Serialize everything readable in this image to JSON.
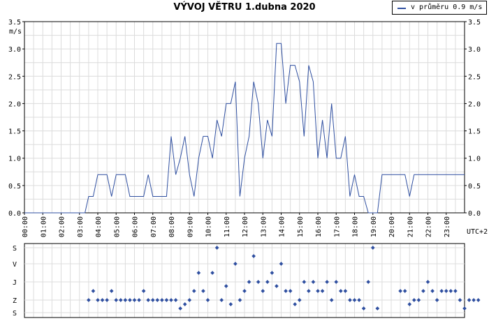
{
  "chart_data": [
    {
      "type": "line",
      "title": "VÝVOJ VĚTRU  1.dubna 2020",
      "ylabel": "m/s",
      "timezone_label": "UTC+2",
      "ylim": [
        0,
        3.5
      ],
      "y_ticks": [
        "0.0",
        "0.5",
        "1.0",
        "1.5",
        "2.0",
        "2.5",
        "3.0",
        "3.5"
      ],
      "xlim": [
        0,
        24
      ],
      "x_ticks": [
        "00:00",
        "01:00",
        "02:00",
        "03:00",
        "04:00",
        "05:00",
        "06:00",
        "07:00",
        "08:00",
        "09:00",
        "10:00",
        "11:00",
        "12:00",
        "13:00",
        "14:00",
        "15:00",
        "16:00",
        "17:00",
        "18:00",
        "19:00",
        "20:00",
        "21:00",
        "22:00",
        "23:00"
      ],
      "grid": true,
      "legend_position": "top-right",
      "series": [
        {
          "name": "v průměru 0.9 m/s",
          "color": "#2f4fa0",
          "x": [
            0,
            3.3,
            3.5,
            3.75,
            4.0,
            4.5,
            4.75,
            5.0,
            5.5,
            5.75,
            6.25,
            6.5,
            6.75,
            7.0,
            7.5,
            7.75,
            8.0,
            8.25,
            8.5,
            8.75,
            9.0,
            9.25,
            9.5,
            9.75,
            10.0,
            10.25,
            10.5,
            10.75,
            11.0,
            11.25,
            11.5,
            11.75,
            12.0,
            12.25,
            12.5,
            12.75,
            13.0,
            13.25,
            13.5,
            13.75,
            14.0,
            14.25,
            14.5,
            14.75,
            15.0,
            15.25,
            15.5,
            15.75,
            16.0,
            16.25,
            16.5,
            16.75,
            17.0,
            17.25,
            17.5,
            17.75,
            18.0,
            18.25,
            18.5,
            18.75,
            19.0,
            19.25,
            19.5,
            20.0,
            20.5,
            20.75,
            21.0,
            21.25,
            21.5,
            22.0,
            22.5,
            23.0,
            23.5,
            24.0
          ],
          "y": [
            0,
            0,
            0.3,
            0.3,
            0.7,
            0.7,
            0.3,
            0.7,
            0.7,
            0.3,
            0.3,
            0.3,
            0.7,
            0.3,
            0.3,
            0.3,
            1.4,
            0.7,
            1.0,
            1.4,
            0.7,
            0.3,
            1.0,
            1.4,
            1.4,
            1.0,
            1.7,
            1.4,
            2.0,
            2.0,
            2.4,
            0.3,
            1.0,
            1.4,
            2.4,
            2.0,
            1.0,
            1.7,
            1.4,
            3.1,
            3.1,
            2.0,
            2.7,
            2.7,
            2.4,
            1.4,
            2.7,
            2.4,
            1.0,
            1.7,
            1.0,
            2.0,
            1.0,
            1.0,
            1.4,
            0.3,
            0.7,
            0.3,
            0.3,
            0,
            0,
            0,
            0.7,
            0.7,
            0.7,
            0.7,
            0.3,
            0.7,
            0.7,
            0.7,
            0.7,
            0.7,
            0.7,
            0.7
          ]
        }
      ]
    },
    {
      "type": "scatter",
      "ylabel": "wind direction",
      "y_categories": [
        "S",
        "Z",
        "J",
        "V",
        "S"
      ],
      "xlim": [
        0,
        24
      ],
      "color": "#2f4fa0",
      "points": [
        [
          3.5,
          "Z"
        ],
        [
          3.75,
          "Z+"
        ],
        [
          4.0,
          "Z"
        ],
        [
          4.25,
          "Z"
        ],
        [
          4.5,
          "Z"
        ],
        [
          4.75,
          "Z+"
        ],
        [
          5.0,
          "Z"
        ],
        [
          5.25,
          "Z"
        ],
        [
          5.5,
          "Z"
        ],
        [
          5.75,
          "Z"
        ],
        [
          6.0,
          "Z"
        ],
        [
          6.25,
          "Z"
        ],
        [
          6.5,
          "Z+"
        ],
        [
          6.75,
          "Z"
        ],
        [
          7.0,
          "Z"
        ],
        [
          7.25,
          "Z"
        ],
        [
          7.5,
          "Z"
        ],
        [
          7.75,
          "Z"
        ],
        [
          8.0,
          "Z"
        ],
        [
          8.25,
          "Z"
        ],
        [
          8.5,
          "SZ"
        ],
        [
          8.75,
          "Z-"
        ],
        [
          9.0,
          "Z"
        ],
        [
          9.25,
          "Z+"
        ],
        [
          9.5,
          "J+"
        ],
        [
          9.75,
          "Z+"
        ],
        [
          10.0,
          "Z"
        ],
        [
          10.25,
          "J+"
        ],
        [
          10.5,
          "S"
        ],
        [
          10.75,
          "Z"
        ],
        [
          11.0,
          "J-"
        ],
        [
          11.25,
          "Z-"
        ],
        [
          11.5,
          "V"
        ],
        [
          11.75,
          "Z"
        ],
        [
          12.0,
          "Z+"
        ],
        [
          12.25,
          "J"
        ],
        [
          12.5,
          "V+"
        ],
        [
          12.75,
          "J"
        ],
        [
          13.0,
          "Z+"
        ],
        [
          13.25,
          "J"
        ],
        [
          13.5,
          "J+"
        ],
        [
          13.75,
          "J-"
        ],
        [
          14.0,
          "V"
        ],
        [
          14.25,
          "Z+"
        ],
        [
          14.5,
          "Z+"
        ],
        [
          14.75,
          "Z-"
        ],
        [
          15.0,
          "Z"
        ],
        [
          15.25,
          "J"
        ],
        [
          15.5,
          "Z+"
        ],
        [
          15.75,
          "J"
        ],
        [
          16.0,
          "Z+"
        ],
        [
          16.25,
          "Z+"
        ],
        [
          16.5,
          "J"
        ],
        [
          16.75,
          "Z"
        ],
        [
          17.0,
          "J"
        ],
        [
          17.25,
          "Z+"
        ],
        [
          17.5,
          "Z+"
        ],
        [
          17.75,
          "Z"
        ],
        [
          18.0,
          "Z"
        ],
        [
          18.25,
          "Z"
        ],
        [
          18.5,
          "SZ"
        ],
        [
          18.75,
          "J"
        ],
        [
          19.0,
          "S"
        ],
        [
          19.25,
          "SZ"
        ],
        [
          20.5,
          "Z+"
        ],
        [
          20.75,
          "Z+"
        ],
        [
          21.0,
          "Z-"
        ],
        [
          21.25,
          "Z"
        ],
        [
          21.5,
          "Z"
        ],
        [
          21.75,
          "Z+"
        ],
        [
          22.0,
          "J"
        ],
        [
          22.25,
          "Z+"
        ],
        [
          22.5,
          "Z"
        ],
        [
          22.75,
          "Z+"
        ],
        [
          23.0,
          "Z+"
        ],
        [
          23.25,
          "Z+"
        ],
        [
          23.5,
          "Z+"
        ],
        [
          23.75,
          "Z"
        ],
        [
          24.0,
          "SZ"
        ],
        [
          24.25,
          "Z"
        ],
        [
          24.5,
          "Z"
        ],
        [
          24.75,
          "Z"
        ]
      ]
    }
  ]
}
